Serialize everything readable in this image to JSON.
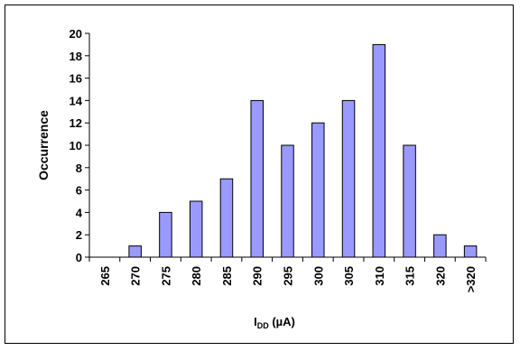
{
  "chart_data": {
    "type": "bar",
    "categories": [
      "265",
      "270",
      "275",
      "280",
      "285",
      "290",
      "295",
      "300",
      "305",
      "310",
      "315",
      "320",
      ">320"
    ],
    "values": [
      0,
      1,
      4,
      5,
      7,
      14,
      10,
      12,
      14,
      19,
      10,
      2,
      1
    ],
    "ylabel": "Occurrence",
    "xlabel": {
      "main": "I",
      "sub": "DD",
      "rest": " (µA)"
    },
    "ylim": [
      0,
      20
    ],
    "yticks": [
      0,
      2,
      4,
      6,
      8,
      10,
      12,
      14,
      16,
      18,
      20
    ],
    "grid": false,
    "bar_color": "#9999ff",
    "bar_edge_color": "#000000"
  }
}
